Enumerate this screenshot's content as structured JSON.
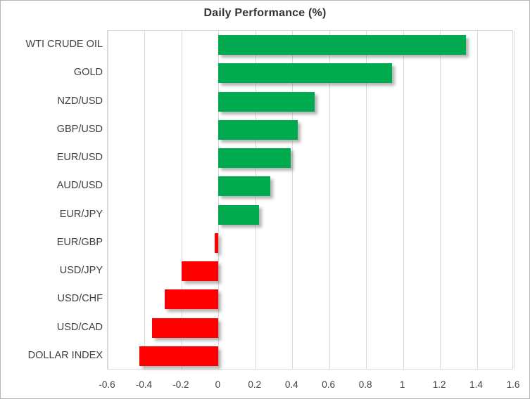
{
  "chart_data": {
    "type": "bar",
    "orientation": "horizontal",
    "title": "Daily Performance (%)",
    "categories": [
      "WTI CRUDE OIL",
      "GOLD",
      "NZD/USD",
      "GBP/USD",
      "EUR/USD",
      "AUD/USD",
      "EUR/JPY",
      "EUR/GBP",
      "USD/JPY",
      "USD/CHF",
      "USD/CAD",
      "DOLLAR INDEX"
    ],
    "values": [
      1.34,
      0.94,
      0.52,
      0.43,
      0.39,
      0.28,
      0.22,
      -0.02,
      -0.2,
      -0.29,
      -0.36,
      -0.43
    ],
    "xlabel": "",
    "ylabel": "",
    "xlim": [
      -0.6,
      1.6
    ],
    "tick_step": 0.2,
    "tick_labels": [
      "-0.6",
      "-0.4",
      "-0.2",
      "0",
      "0.2",
      "0.4",
      "0.6",
      "0.8",
      "1",
      "1.2",
      "1.4",
      "1.6"
    ],
    "grid": true,
    "legend": false,
    "colors": {
      "positive": "#00ab50",
      "negative": "#ff0000",
      "gridline": "#d9d9d9",
      "axis_line": "#d9d9d9",
      "axis_text": "#3f3f3f",
      "title_text": "#333333",
      "border": "#b5b5b5",
      "background": "#ffffff"
    }
  }
}
